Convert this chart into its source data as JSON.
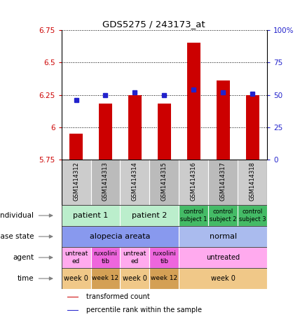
{
  "title": "GDS5275 / 243173_at",
  "samples": [
    "GSM1414312",
    "GSM1414313",
    "GSM1414314",
    "GSM1414315",
    "GSM1414316",
    "GSM1414317",
    "GSM1414318"
  ],
  "transformed_count": [
    5.95,
    6.18,
    6.25,
    6.18,
    6.65,
    6.36,
    6.25
  ],
  "percentile_rank": [
    46,
    50,
    52,
    50,
    54,
    52,
    51
  ],
  "ylim_left": [
    5.75,
    6.75
  ],
  "ylim_right": [
    0,
    100
  ],
  "yticks_left": [
    5.75,
    6.0,
    6.25,
    6.5,
    6.75
  ],
  "ytick_labels_left": [
    "5.75",
    "6",
    "6.25",
    "6.5",
    "6.75"
  ],
  "yticks_right": [
    0,
    25,
    50,
    75,
    100
  ],
  "ytick_labels_right": [
    "0",
    "25",
    "50",
    "75",
    "100%"
  ],
  "bar_color": "#cc0000",
  "dot_color": "#2222cc",
  "bar_width": 0.45,
  "annotation_rows": [
    {
      "label": "individual",
      "cells": [
        {
          "text": "patient 1",
          "span": [
            0,
            2
          ],
          "color": "#bbeecc",
          "fontsize": 8
        },
        {
          "text": "patient 2",
          "span": [
            2,
            4
          ],
          "color": "#bbeecc",
          "fontsize": 8
        },
        {
          "text": "control\nsubject 1",
          "span": [
            4,
            5
          ],
          "color": "#44bb66",
          "fontsize": 6
        },
        {
          "text": "control\nsubject 2",
          "span": [
            5,
            6
          ],
          "color": "#44bb66",
          "fontsize": 6
        },
        {
          "text": "control\nsubject 3",
          "span": [
            6,
            7
          ],
          "color": "#44bb66",
          "fontsize": 6
        }
      ]
    },
    {
      "label": "disease state",
      "cells": [
        {
          "text": "alopecia areata",
          "span": [
            0,
            4
          ],
          "color": "#8899ee",
          "fontsize": 8
        },
        {
          "text": "normal",
          "span": [
            4,
            7
          ],
          "color": "#aabbee",
          "fontsize": 8
        }
      ]
    },
    {
      "label": "agent",
      "cells": [
        {
          "text": "untreat\ned",
          "span": [
            0,
            1
          ],
          "color": "#ffaaee",
          "fontsize": 6.5
        },
        {
          "text": "ruxolini\ntib",
          "span": [
            1,
            2
          ],
          "color": "#ee66dd",
          "fontsize": 6.5
        },
        {
          "text": "untreat\ned",
          "span": [
            2,
            3
          ],
          "color": "#ffaaee",
          "fontsize": 6.5
        },
        {
          "text": "ruxolini\ntib",
          "span": [
            3,
            4
          ],
          "color": "#ee66dd",
          "fontsize": 6.5
        },
        {
          "text": "untreated",
          "span": [
            4,
            7
          ],
          "color": "#ffaaee",
          "fontsize": 7
        }
      ]
    },
    {
      "label": "time",
      "cells": [
        {
          "text": "week 0",
          "span": [
            0,
            1
          ],
          "color": "#f0c888",
          "fontsize": 7
        },
        {
          "text": "week 12",
          "span": [
            1,
            2
          ],
          "color": "#d4a055",
          "fontsize": 6.5
        },
        {
          "text": "week 0",
          "span": [
            2,
            3
          ],
          "color": "#f0c888",
          "fontsize": 7
        },
        {
          "text": "week 12",
          "span": [
            3,
            4
          ],
          "color": "#d4a055",
          "fontsize": 6.5
        },
        {
          "text": "week 0",
          "span": [
            4,
            7
          ],
          "color": "#f0c888",
          "fontsize": 7
        }
      ]
    }
  ],
  "legend_items": [
    {
      "color": "#cc0000",
      "label": "transformed count"
    },
    {
      "color": "#2222cc",
      "label": "percentile rank within the sample"
    }
  ],
  "tick_color_left": "#cc0000",
  "tick_color_right": "#2222cc",
  "sample_bg_color": "#cccccc",
  "sample_alt_color": "#bbbbbb"
}
